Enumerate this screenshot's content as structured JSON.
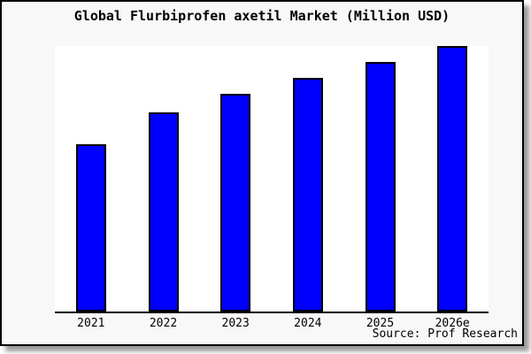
{
  "window": {
    "background": "#f8f8f8"
  },
  "chart_data": {
    "type": "bar",
    "title": "Global Flurbiprofen axetil Market (Million USD)",
    "categories": [
      "2021",
      "2022",
      "2023",
      "2024",
      "2025",
      "2026e"
    ],
    "values": [
      63,
      75,
      82,
      88,
      94,
      100
    ],
    "ylim": [
      0,
      100
    ],
    "xlabel": "",
    "ylabel": "",
    "grid": false,
    "legend": false,
    "y_axis_labels_visible": false,
    "values_estimation": "relative index estimated from bar heights; tallest bar (2026e) = 100; no y-axis ticks shown in image",
    "colors": {
      "bar_fill": "#0000ff",
      "bar_border": "#000000",
      "plot_background": "#ffffff",
      "frame_background": "#f8f8f8",
      "axis": "#000000",
      "text": "#000000"
    }
  },
  "source": {
    "label": "Source: Prof Research"
  }
}
